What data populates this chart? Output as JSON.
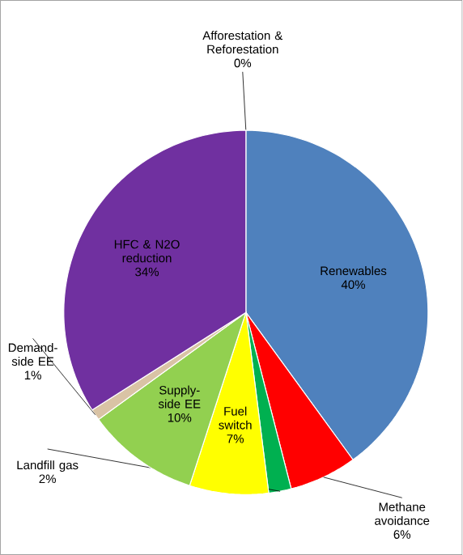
{
  "chart_data": {
    "type": "pie",
    "categories": [
      "Afforestation & Reforestation",
      "Renewables",
      "Methane avoidance",
      "Landfill gas",
      "Fuel switch",
      "Supply-side EE",
      "Demand-side EE",
      "HFC & N2O reduction"
    ],
    "values": [
      0,
      40,
      6,
      2,
      7,
      10,
      1,
      34
    ],
    "value_labels": [
      "0%",
      "40%",
      "6%",
      "2%",
      "7%",
      "10%",
      "1%",
      "34%"
    ],
    "colors": [
      "#e46c0a",
      "#4f81bd",
      "#ff0000",
      "#00b050",
      "#ffff00",
      "#92d050",
      "#d9c3a5",
      "#7030a0"
    ],
    "legend": false
  }
}
